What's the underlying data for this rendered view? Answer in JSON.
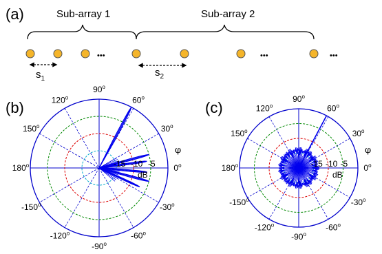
{
  "panel_a": {
    "label": "(a)",
    "subarray1_label": "Sub-array 1",
    "subarray2_label": "Sub-array 2",
    "spacing1_label": "s",
    "spacing1_sub": "1",
    "spacing2_label": "s",
    "spacing2_sub": "2",
    "element_color": "#f5b52a",
    "ellipsis": "•••"
  },
  "panel_b": {
    "label": "(b)"
  },
  "panel_c": {
    "label": "(c)"
  },
  "polar": {
    "angle_labels": [
      {
        "deg": 90,
        "text": "90",
        "sup": "o"
      },
      {
        "deg": 60,
        "text": "60",
        "sup": "o"
      },
      {
        "deg": 30,
        "text": "30",
        "sup": "o"
      },
      {
        "deg": 0,
        "text": "0",
        "sup": "o"
      },
      {
        "deg": -30,
        "text": "-30",
        "sup": "o"
      },
      {
        "deg": -60,
        "text": "-60",
        "sup": "o"
      },
      {
        "deg": -90,
        "text": "-90",
        "sup": "o"
      },
      {
        "deg": -120,
        "text": "-120",
        "sup": "o"
      },
      {
        "deg": -150,
        "text": "-150",
        "sup": "o"
      },
      {
        "deg": 180,
        "text": "180",
        "sup": "o"
      },
      {
        "deg": 150,
        "text": "150",
        "sup": "o"
      },
      {
        "deg": 120,
        "text": "120",
        "sup": "o"
      }
    ],
    "ring_labels": [
      "-15",
      "-10",
      "-5"
    ],
    "unit": "dB",
    "axis_symbol": "φ",
    "colors": {
      "outer": "#0000cc",
      "spoke": "#0000cc",
      "ring_green": "#008800",
      "ring_red": "#dd0000",
      "ring_cyan": "#00aacc",
      "pattern": "#0000ee"
    }
  },
  "chart_data": [
    {
      "type": "polar",
      "panel": "(b)",
      "r_label": "dB",
      "r_ticks": [
        -15,
        -10,
        -5
      ],
      "theta_ticks_deg": [
        0,
        30,
        60,
        90,
        120,
        150,
        180,
        -150,
        -120,
        -90,
        -60,
        -30
      ],
      "lobes": [
        {
          "theta_deg": 62,
          "level_db": 0
        },
        {
          "theta_deg": 15,
          "level_db": -5
        },
        {
          "theta_deg": 8,
          "level_db": -6
        },
        {
          "theta_deg": -5,
          "level_db": -6
        },
        {
          "theta_deg": -15,
          "level_db": -5
        },
        {
          "theta_deg": -25,
          "level_db": -7
        }
      ]
    },
    {
      "type": "polar",
      "panel": "(c)",
      "r_label": "dB",
      "r_ticks": [
        -15,
        -10,
        -5
      ],
      "theta_ticks_deg": [
        0,
        30,
        60,
        90,
        120,
        150,
        180,
        -150,
        -120,
        -90,
        -60,
        -30
      ],
      "lobes": [
        {
          "theta_deg": 62,
          "level_db": 0
        }
      ],
      "sidelobe_floor_db": -15
    }
  ]
}
